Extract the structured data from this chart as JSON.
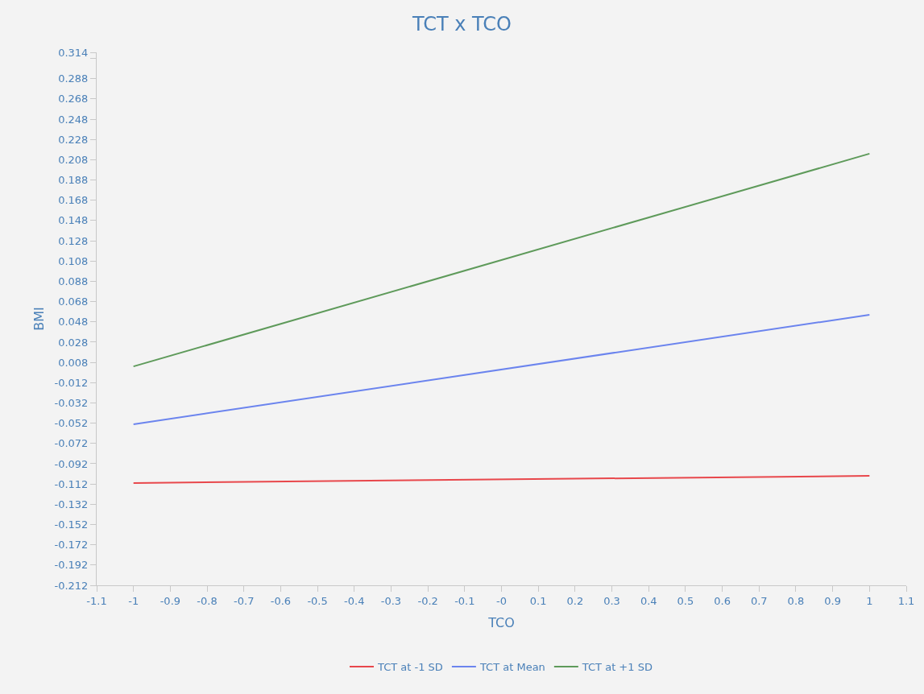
{
  "chart_data": {
    "type": "line",
    "title": "TCT x TCO",
    "xlabel": "TCO",
    "ylabel": "BMI",
    "x": [
      -1,
      1
    ],
    "series": [
      {
        "name": "TCT at -1 SD",
        "color": "#e8474b",
        "values": [
          -0.111,
          -0.104
        ]
      },
      {
        "name": "TCT at Mean",
        "color": "#6b84ee",
        "values": [
          -0.053,
          0.055
        ]
      },
      {
        "name": "TCT at +1 SD",
        "color": "#5e9a5a",
        "values": [
          0.004,
          0.214
        ]
      }
    ],
    "xlim": [
      -1.1,
      1.1
    ],
    "xticks": [
      -1.1,
      -1,
      -0.9,
      -0.8,
      -0.7,
      -0.6,
      -0.5,
      -0.4,
      -0.3,
      -0.2,
      -0.1,
      {
        "value": 0,
        "label": "-0"
      },
      0.1,
      0.2,
      0.3,
      0.4,
      0.5,
      0.6,
      0.7,
      0.8,
      0.9,
      1,
      1.1
    ],
    "ylim": [
      -0.212,
      0.314
    ],
    "yticks": [
      -0.212,
      -0.192,
      -0.172,
      -0.152,
      -0.132,
      -0.112,
      -0.092,
      -0.072,
      -0.052,
      -0.032,
      -0.012,
      0.008,
      0.028,
      0.048,
      0.068,
      0.088,
      0.108,
      0.128,
      0.148,
      0.168,
      0.188,
      0.208,
      0.228,
      0.248,
      0.268,
      0.288,
      {
        "value": 0.308,
        "label": null
      },
      0.314
    ],
    "grid": false,
    "legend": "bottom",
    "marker": "none",
    "line_style": "solid"
  }
}
